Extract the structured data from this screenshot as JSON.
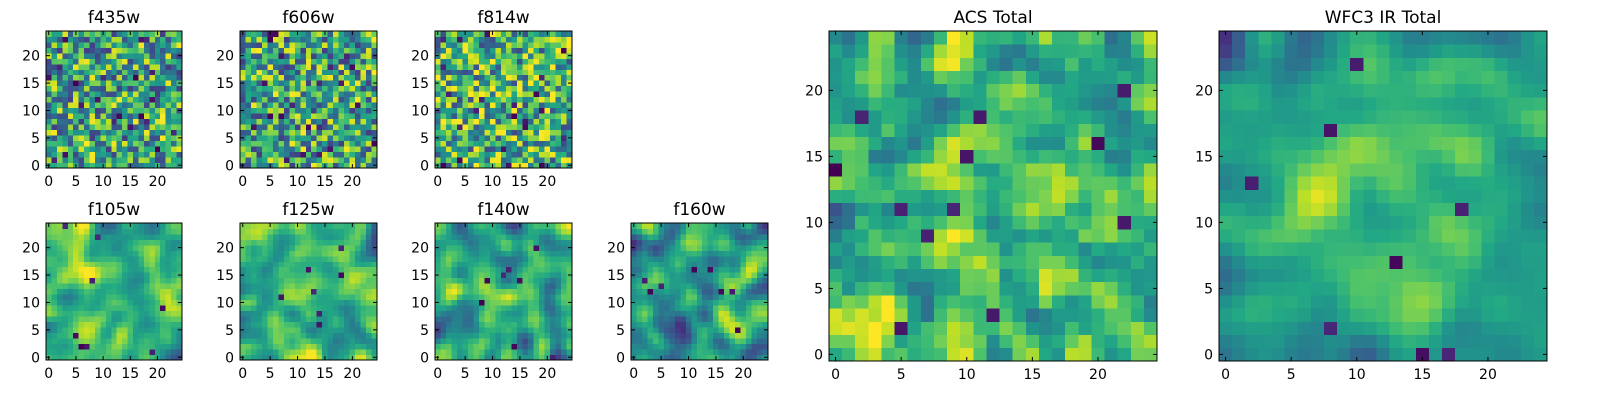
{
  "figure": {
    "description_colormap": "viridis",
    "colors": {
      "viridis_low": "#440154",
      "viridis_mid": "#21918c",
      "viridis_high": "#fde725"
    }
  },
  "chart_data": [
    {
      "id": "f435w",
      "type": "heatmap",
      "title": "f435w",
      "grid": [
        25,
        25
      ],
      "xlim": [
        -0.5,
        24.5
      ],
      "ylim": [
        -0.5,
        24.5
      ],
      "xticks": [
        0,
        5,
        10,
        15,
        20
      ],
      "yticks": [
        0,
        5,
        10,
        15,
        20
      ],
      "xtick_labels": [
        "0",
        "5",
        "10",
        "15",
        "20"
      ],
      "ytick_labels": [
        "0",
        "5",
        "10",
        "15",
        "20"
      ],
      "texture": "pixel",
      "seed": 11,
      "bias": 0.0
    },
    {
      "id": "f606w",
      "type": "heatmap",
      "title": "f606w",
      "grid": [
        25,
        25
      ],
      "xlim": [
        -0.5,
        24.5
      ],
      "ylim": [
        -0.5,
        24.5
      ],
      "xticks": [
        0,
        5,
        10,
        15,
        20
      ],
      "yticks": [
        0,
        5,
        10,
        15,
        20
      ],
      "xtick_labels": [
        "0",
        "5",
        "10",
        "15",
        "20"
      ],
      "ytick_labels": [
        "0",
        "5",
        "10",
        "15",
        "20"
      ],
      "texture": "pixel",
      "seed": 23,
      "bias": 0.0
    },
    {
      "id": "f814w",
      "type": "heatmap",
      "title": "f814w",
      "grid": [
        25,
        25
      ],
      "xlim": [
        -0.5,
        24.5
      ],
      "ylim": [
        -0.5,
        24.5
      ],
      "xticks": [
        0,
        5,
        10,
        15,
        20
      ],
      "yticks": [
        0,
        5,
        10,
        15,
        20
      ],
      "xtick_labels": [
        "0",
        "5",
        "10",
        "15",
        "20"
      ],
      "ytick_labels": [
        "0",
        "5",
        "10",
        "15",
        "20"
      ],
      "texture": "pixel",
      "seed": 37,
      "bias": 0.05
    },
    {
      "id": "f105w",
      "type": "heatmap",
      "title": "f105w",
      "grid": [
        25,
        25
      ],
      "xlim": [
        -0.5,
        24.5
      ],
      "ylim": [
        -0.5,
        24.5
      ],
      "xticks": [
        0,
        5,
        10,
        15,
        20
      ],
      "yticks": [
        0,
        5,
        10,
        15,
        20
      ],
      "xtick_labels": [
        "0",
        "5",
        "10",
        "15",
        "20"
      ],
      "ytick_labels": [
        "0",
        "5",
        "10",
        "15",
        "20"
      ],
      "texture": "smooth",
      "seed": 41,
      "bias": 0.05
    },
    {
      "id": "f125w",
      "type": "heatmap",
      "title": "f125w",
      "grid": [
        25,
        25
      ],
      "xlim": [
        -0.5,
        24.5
      ],
      "ylim": [
        -0.5,
        24.5
      ],
      "xticks": [
        0,
        5,
        10,
        15,
        20
      ],
      "yticks": [
        0,
        5,
        10,
        15,
        20
      ],
      "xtick_labels": [
        "0",
        "5",
        "10",
        "15",
        "20"
      ],
      "ytick_labels": [
        "0",
        "5",
        "10",
        "15",
        "20"
      ],
      "texture": "smooth",
      "seed": 53,
      "bias": 0.05
    },
    {
      "id": "f140w",
      "type": "heatmap",
      "title": "f140w",
      "grid": [
        25,
        25
      ],
      "xlim": [
        -0.5,
        24.5
      ],
      "ylim": [
        -0.5,
        24.5
      ],
      "xticks": [
        0,
        5,
        10,
        15,
        20
      ],
      "yticks": [
        0,
        5,
        10,
        15,
        20
      ],
      "xtick_labels": [
        "0",
        "5",
        "10",
        "15",
        "20"
      ],
      "ytick_labels": [
        "0",
        "5",
        "10",
        "15",
        "20"
      ],
      "texture": "smooth",
      "seed": 67,
      "bias": 0.0
    },
    {
      "id": "f160w",
      "type": "heatmap",
      "title": "f160w",
      "grid": [
        25,
        25
      ],
      "xlim": [
        -0.5,
        24.5
      ],
      "ylim": [
        -0.5,
        24.5
      ],
      "xticks": [
        0,
        5,
        10,
        15,
        20
      ],
      "yticks": [
        0,
        5,
        10,
        15,
        20
      ],
      "xtick_labels": [
        "0",
        "5",
        "10",
        "15",
        "20"
      ],
      "ytick_labels": [
        "0",
        "5",
        "10",
        "15",
        "20"
      ],
      "texture": "smooth",
      "seed": 79,
      "bias": -0.05
    },
    {
      "id": "acs_total",
      "type": "heatmap",
      "title": "ACS Total",
      "grid": [
        25,
        25
      ],
      "xlim": [
        -0.5,
        24.5
      ],
      "ylim": [
        -0.5,
        24.5
      ],
      "xticks": [
        0,
        5,
        10,
        15,
        20
      ],
      "yticks": [
        0,
        5,
        10,
        15,
        20
      ],
      "xtick_labels": [
        "0",
        "5",
        "10",
        "15",
        "20"
      ],
      "ytick_labels": [
        "0",
        "5",
        "10",
        "15",
        "20"
      ],
      "texture": "pixel-soft",
      "seed": 91,
      "bias": 0.08
    },
    {
      "id": "wfc3_ir_total",
      "type": "heatmap",
      "title": "WFC3 IR Total",
      "grid": [
        25,
        25
      ],
      "xlim": [
        -0.5,
        24.5
      ],
      "ylim": [
        -0.5,
        24.5
      ],
      "xticks": [
        0,
        5,
        10,
        15,
        20
      ],
      "yticks": [
        0,
        5,
        10,
        15,
        20
      ],
      "xtick_labels": [
        "0",
        "5",
        "10",
        "15",
        "20"
      ],
      "ytick_labels": [
        "0",
        "5",
        "10",
        "15",
        "20"
      ],
      "texture": "smooth-center",
      "seed": 103,
      "bias": 0.0
    }
  ]
}
